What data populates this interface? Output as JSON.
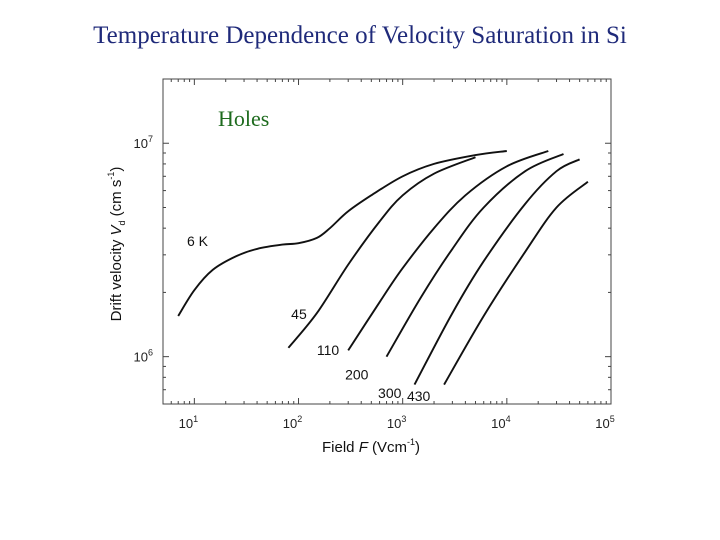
{
  "slide": {
    "title": "Temperature Dependence of Velocity Saturation in Si"
  },
  "chart_data": {
    "type": "line",
    "title": "",
    "annotation": "Holes",
    "annotation_color": "#1e6b1e",
    "x_scale": "log",
    "y_scale": "log",
    "xlim": [
      5,
      100000
    ],
    "ylim": [
      600000,
      20000000
    ],
    "xlabel_parts": {
      "prefix": "Field ",
      "italic": "F",
      "unit": " (Vcm",
      "exp": "-1",
      "close": ")"
    },
    "ylabel_parts": {
      "prefix": "Drift velocity ",
      "italic": "V",
      "sub": "d",
      "unit": " (cm s",
      "exp": "-1",
      "close": ")"
    },
    "x_ticks": [
      {
        "base": "10",
        "exp": "1",
        "value": 10
      },
      {
        "base": "10",
        "exp": "2",
        "value": 100
      },
      {
        "base": "10",
        "exp": "3",
        "value": 1000
      },
      {
        "base": "10",
        "exp": "4",
        "value": 10000
      },
      {
        "base": "10",
        "exp": "5",
        "value": 100000
      }
    ],
    "y_ticks": [
      {
        "base": "10",
        "exp": "6",
        "value": 1000000
      },
      {
        "base": "10",
        "exp": "7",
        "value": 10000000
      }
    ],
    "grid": false,
    "series": [
      {
        "name": "6 K",
        "label_at": [
          8.5,
          3300000
        ],
        "x": [
          7,
          10,
          15,
          25,
          40,
          70,
          100,
          150,
          200,
          300,
          500,
          1000,
          2000,
          5000,
          10000
        ],
        "y": [
          1550000,
          2050000,
          2550000,
          2950000,
          3200000,
          3350000,
          3400000,
          3600000,
          4000000,
          4800000,
          5700000,
          7000000,
          8000000,
          8800000,
          9200000
        ]
      },
      {
        "name": "45",
        "label_at": [
          85,
          1500000
        ],
        "x": [
          80,
          150,
          300,
          600,
          1000,
          2000,
          5000
        ],
        "y": [
          1100000,
          1600000,
          2700000,
          4300000,
          5700000,
          7200000,
          8600000
        ]
      },
      {
        "name": "110",
        "label_at": [
          150,
          1020000
        ],
        "x": [
          300,
          600,
          1000,
          2000,
          4000,
          10000,
          25000
        ],
        "y": [
          1070000,
          1800000,
          2600000,
          4000000,
          5700000,
          7800000,
          9200000
        ]
      },
      {
        "name": "200",
        "label_at": [
          280,
          780000
        ],
        "x": [
          700,
          1500,
          3000,
          6000,
          15000,
          35000
        ],
        "y": [
          1000000,
          1900000,
          3200000,
          5000000,
          7400000,
          8900000
        ]
      },
      {
        "name": "300",
        "label_at": [
          580,
          640000
        ],
        "x": [
          1300,
          3000,
          6000,
          15000,
          30000,
          50000
        ],
        "y": [
          740000,
          1600000,
          2800000,
          5200000,
          7400000,
          8400000
        ]
      },
      {
        "name": "430",
        "label_at": [
          1100,
          620000
        ],
        "x": [
          2500,
          6000,
          15000,
          30000,
          60000
        ],
        "y": [
          740000,
          1550000,
          3100000,
          5000000,
          6600000
        ]
      }
    ]
  }
}
